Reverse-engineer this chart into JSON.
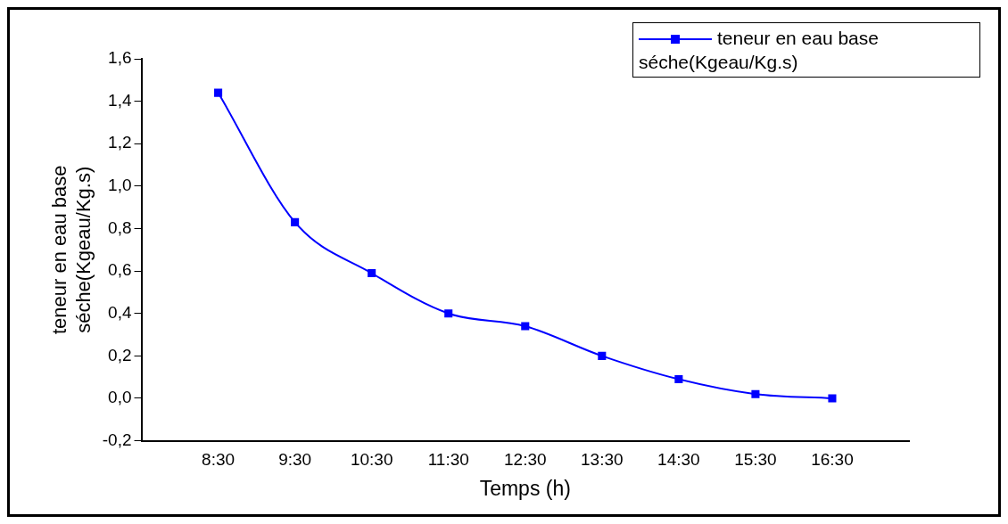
{
  "chart_data": {
    "type": "line",
    "xlabel": "Temps (h)",
    "ylabel": "teneur en eau base\nséche(Kgeau/Kg.s)",
    "categories": [
      "8:30",
      "9:30",
      "10:30",
      "11:30",
      "12:30",
      "13:30",
      "14:30",
      "15:30",
      "16:30"
    ],
    "series": [
      {
        "name": "teneur en eau base séche(Kgeau/Kg.s)",
        "color": "#0000ff",
        "values": [
          1.44,
          0.83,
          0.59,
          0.4,
          0.34,
          0.2,
          0.09,
          0.02,
          0.0
        ]
      }
    ],
    "ylim": [
      -0.2,
      1.6
    ],
    "yticks": [
      {
        "value": -0.2,
        "label": "-0,2"
      },
      {
        "value": 0,
        "label": "0,0"
      },
      {
        "value": 0.2,
        "label": "0,2"
      },
      {
        "value": 0.4,
        "label": "0,4"
      },
      {
        "value": 0.6,
        "label": "0,6"
      },
      {
        "value": 0.8,
        "label": "0,8"
      },
      {
        "value": 1.0,
        "label": "1,0"
      },
      {
        "value": 1.2,
        "label": "1,2"
      },
      {
        "value": 1.4,
        "label": "1,4"
      },
      {
        "value": 1.6,
        "label": "1,6"
      }
    ],
    "grid": false,
    "legend": "top right",
    "marker": "square",
    "line_style": "solid"
  }
}
